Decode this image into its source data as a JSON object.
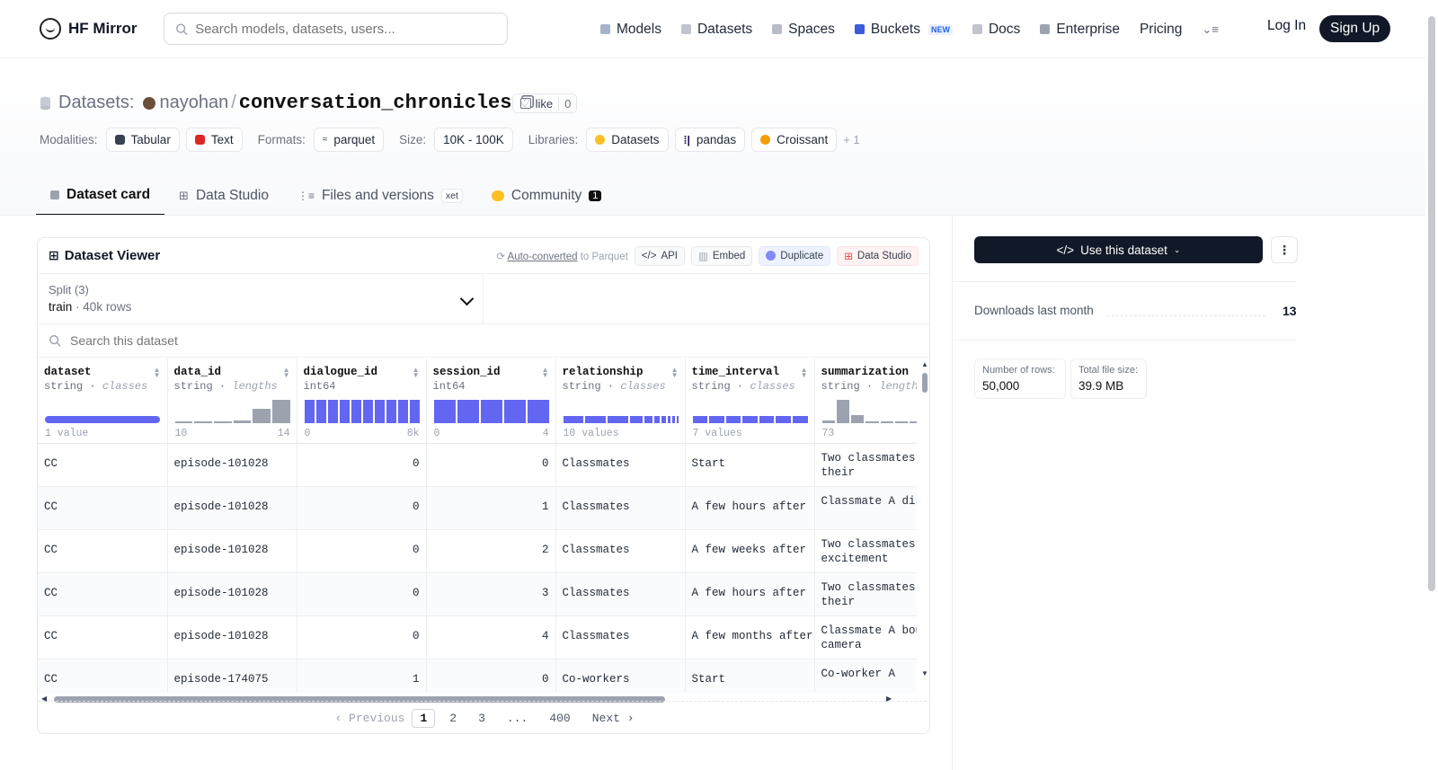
{
  "nav": {
    "brand": "HF Mirror",
    "search_placeholder": "Search models, datasets, users...",
    "links": [
      "Models",
      "Datasets",
      "Spaces",
      "Buckets",
      "Docs",
      "Enterprise",
      "Pricing"
    ],
    "new_badge": "NEW",
    "login": "Log In",
    "signup": "Sign Up"
  },
  "header": {
    "section": "Datasets:",
    "owner": "nayohan",
    "slash": "/",
    "name": "conversation_chronicles",
    "like": "like",
    "like_count": "0"
  },
  "meta": {
    "modalities_label": "Modalities:",
    "modalities": [
      "Tabular",
      "Text"
    ],
    "formats_label": "Formats:",
    "format": "parquet",
    "size_label": "Size:",
    "size": "10K - 100K",
    "libraries_label": "Libraries:",
    "libraries": [
      "Datasets",
      "pandas",
      "Croissant"
    ],
    "more": "+ 1"
  },
  "tabs": {
    "card": "Dataset card",
    "studio": "Data Studio",
    "files": "Files and versions",
    "xet": "xet",
    "community": "Community",
    "community_count": "1"
  },
  "viewer": {
    "title": "Dataset Viewer",
    "auto_u": "Auto-converted",
    "auto_rest": " to Parquet",
    "api": "API",
    "embed": "Embed",
    "duplicate": "Duplicate",
    "data_studio": "Data Studio",
    "split_label": "Split (3)",
    "split_value": "train",
    "split_sep": "·",
    "split_rows": "40k rows",
    "search_placeholder": "Search this dataset",
    "columns": [
      {
        "name": "dataset",
        "type": "string",
        "sub": "classes",
        "range_left": "1 value",
        "range_right": ""
      },
      {
        "name": "data_id",
        "type": "string",
        "sub": "lengths",
        "range_left": "10",
        "range_right": "14"
      },
      {
        "name": "dialogue_id",
        "type": "int64",
        "sub": "",
        "range_left": "0",
        "range_right": "8k"
      },
      {
        "name": "session_id",
        "type": "int64",
        "sub": "",
        "range_left": "0",
        "range_right": "4"
      },
      {
        "name": "relationship",
        "type": "string",
        "sub": "classes",
        "range_left": "10 values",
        "range_right": ""
      },
      {
        "name": "time_interval",
        "type": "string",
        "sub": "classes",
        "range_left": "7 values",
        "range_right": ""
      },
      {
        "name": "summarization",
        "type": "string",
        "sub": "lengths",
        "range_left": "73",
        "range_right": ""
      }
    ],
    "rows": [
      [
        "CC",
        "episode-101028",
        "0",
        "0",
        "Classmates",
        "Start",
        "Two classmates catch up on their"
      ],
      [
        "CC",
        "episode-101028",
        "0",
        "1",
        "Classmates",
        "A few hours after",
        "Classmate A discovered a new"
      ],
      [
        "CC",
        "episode-101028",
        "0",
        "2",
        "Classmates",
        "A few weeks after",
        "Two classmates express excitement"
      ],
      [
        "CC",
        "episode-101028",
        "0",
        "3",
        "Classmates",
        "A few hours after",
        "Two classmates catch up on their"
      ],
      [
        "CC",
        "episode-101028",
        "0",
        "4",
        "Classmates",
        "A few months after",
        "Classmate A bought a new camera"
      ],
      [
        "CC",
        "episode-174075",
        "1",
        "0",
        "Co-workers",
        "Start",
        "Co-worker A"
      ]
    ],
    "pager": {
      "prev": "Previous",
      "pages": [
        "1",
        "2",
        "3",
        "...",
        "400"
      ],
      "next": "Next"
    }
  },
  "sidebar": {
    "use": "Use this dataset",
    "downloads_label": "Downloads last month",
    "downloads": "13",
    "rows_label": "Number of rows:",
    "rows": "50,000",
    "size_label": "Total file size:",
    "size": "39.9 MB"
  },
  "colors": {
    "accent": "#6366f1",
    "brand_dark": "#111827",
    "muted_bar": "#9ca3af"
  }
}
